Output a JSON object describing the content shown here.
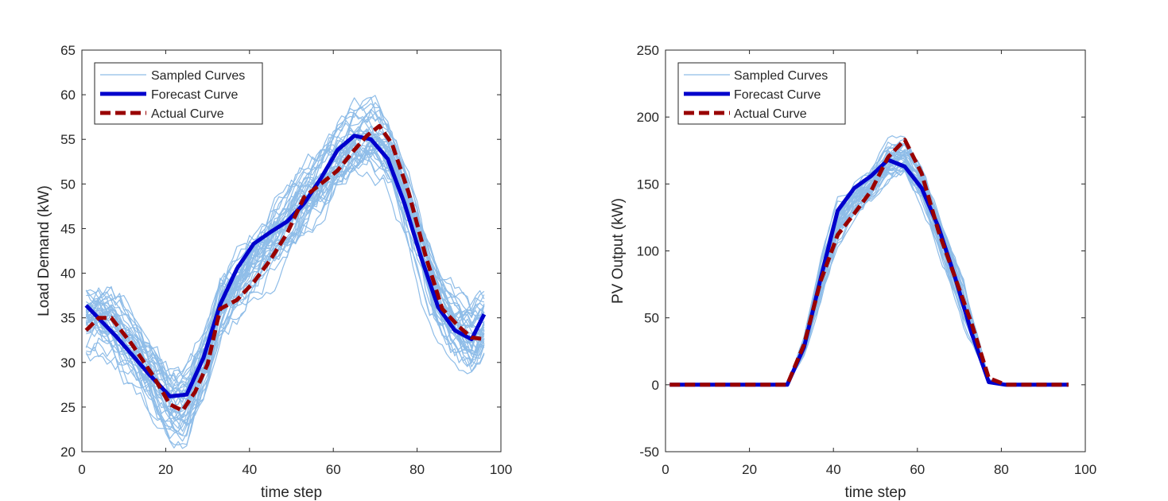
{
  "chart_data": [
    {
      "type": "line",
      "title": "",
      "xlabel": "time step",
      "ylabel": "Load Demand (kW)",
      "xlim": [
        0,
        100
      ],
      "ylim": [
        20,
        65
      ],
      "xticks": [
        0,
        20,
        40,
        60,
        80,
        100
      ],
      "yticks": [
        20,
        25,
        30,
        35,
        40,
        45,
        50,
        55,
        60,
        65
      ],
      "grid": false,
      "legend": {
        "location": "top-left",
        "entries": [
          "Sampled Curves",
          "Forecast Curve",
          "Actual Curve"
        ]
      },
      "sampled_curves": {
        "name": "Sampled Curves",
        "color": "#8fbde8",
        "count": 40,
        "x_range": [
          1,
          96
        ],
        "spread": 2.3,
        "seed": 11
      },
      "series": [
        {
          "name": "Forecast Curve",
          "color": "#0000cc",
          "style": "solid",
          "x": [
            1,
            8,
            16,
            21,
            25,
            29,
            33,
            37,
            41,
            45,
            49,
            53,
            57,
            61,
            65,
            69,
            73,
            77,
            81,
            85,
            89,
            93,
            96
          ],
          "values": [
            36.4,
            33.0,
            28.7,
            26.2,
            26.4,
            30.5,
            36.5,
            40.5,
            43.3,
            44.6,
            45.8,
            47.8,
            50.6,
            53.8,
            55.4,
            55.0,
            52.8,
            47.8,
            41.7,
            36.2,
            33.6,
            32.6,
            35.4
          ]
        },
        {
          "name": "Actual Curve",
          "color": "#990000",
          "style": "dashed",
          "x": [
            1,
            4,
            7,
            12,
            17,
            21,
            24,
            27,
            30,
            33,
            37,
            41,
            45,
            49,
            53,
            57,
            61,
            65,
            68,
            71,
            74,
            78,
            82,
            86,
            90,
            93,
            96
          ],
          "values": [
            33.6,
            35.0,
            35.0,
            32.0,
            28.5,
            25.3,
            24.6,
            26.7,
            29.8,
            36.0,
            37.0,
            39.0,
            41.5,
            44.5,
            48.5,
            50.0,
            51.5,
            53.8,
            55.4,
            56.5,
            54.5,
            49.0,
            42.0,
            36.0,
            34.0,
            32.8,
            32.6
          ]
        }
      ]
    },
    {
      "type": "line",
      "title": "",
      "xlabel": "time step",
      "ylabel": "PV Output (kW)",
      "xlim": [
        0,
        100
      ],
      "ylim": [
        -50,
        250
      ],
      "xticks": [
        0,
        20,
        40,
        60,
        80,
        100
      ],
      "yticks": [
        -50,
        0,
        50,
        100,
        150,
        200,
        250
      ],
      "grid": false,
      "legend": {
        "location": "top-left",
        "entries": [
          "Sampled Curves",
          "Forecast Curve",
          "Actual Curve"
        ]
      },
      "sampled_curves": {
        "name": "Sampled Curves",
        "color": "#8fbde8",
        "count": 40,
        "x_range": [
          29,
          78
        ],
        "spread": 8,
        "seed": 29
      },
      "series": [
        {
          "name": "Forecast Curve",
          "color": "#0000cc",
          "style": "solid",
          "x": [
            1,
            29,
            33,
            37,
            41,
            45,
            49,
            53,
            57,
            61,
            65,
            69,
            73,
            77,
            81,
            96
          ],
          "values": [
            0,
            0,
            28,
            80,
            130,
            147,
            156,
            168,
            163,
            147,
            118,
            80,
            38,
            2,
            0,
            0
          ]
        },
        {
          "name": "Actual Curve",
          "color": "#990000",
          "style": "dashed",
          "x": [
            1,
            29,
            33,
            37,
            41,
            45,
            49,
            53,
            57,
            61,
            65,
            69,
            73,
            77,
            81,
            96
          ],
          "values": [
            0,
            0,
            30,
            78,
            112,
            128,
            145,
            170,
            183,
            158,
            115,
            80,
            45,
            5,
            0,
            0
          ]
        }
      ]
    }
  ]
}
